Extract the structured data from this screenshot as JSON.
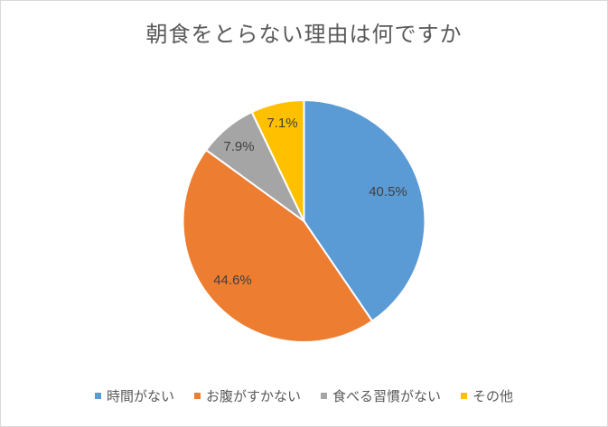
{
  "chart_data": {
    "type": "pie",
    "title": "朝食をとらない理由は何ですか",
    "slices": [
      {
        "label": "時間がない",
        "value": 40.5,
        "display": "40.5%",
        "color": "#5b9bd5"
      },
      {
        "label": "お腹がすかない",
        "value": 44.6,
        "display": "44.6%",
        "color": "#ed7d31"
      },
      {
        "label": "食べる習慣がない",
        "value": 7.9,
        "display": "7.9%",
        "color": "#a5a5a5"
      },
      {
        "label": "その他",
        "value": 7.1,
        "display": "7.1%",
        "color": "#ffc000"
      }
    ],
    "start": "12 o'clock",
    "direction": "clockwise",
    "legend_position": "bottom"
  }
}
